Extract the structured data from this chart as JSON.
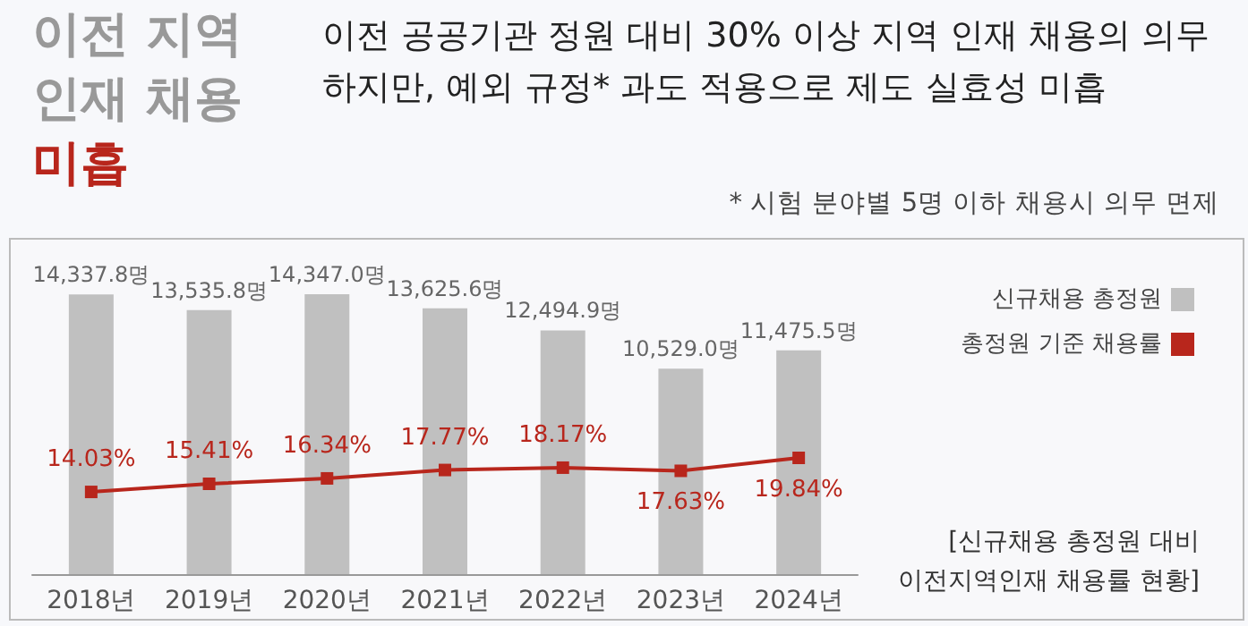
{
  "chart_data": {
    "type": "bar",
    "title": "이전 지역\n인재 채용\n미흡",
    "subtitle": "이전 공공기관 정원 대비 30% 이상 지역 인재 채용의 의무\n하지만, 예외 규정* 과도 적용으로 제도 실효성 미흡",
    "annotations": [
      "* 시험 분야별 5명 이하 채용시 의무 면제",
      "[신규채용 총정원 대비\n이전지역인재 채용률 현황]"
    ],
    "categories": [
      "2018년",
      "2019년",
      "2020년",
      "2021년",
      "2022년",
      "2023년",
      "2024년"
    ],
    "series": [
      {
        "name": "신규채용 총정원",
        "color": "#c0c0c0",
        "values": [
          14337.8,
          13535.8,
          14347.0,
          13625.6,
          12494.9,
          10529.0,
          11475.5
        ],
        "value_labels": [
          "14,337.8명",
          "13,535.8명",
          "14,347.0명",
          "13,625.6명",
          "12,494.9명",
          "10,529.0명",
          "11,475.5명"
        ]
      },
      {
        "name": "총정원 기준 채용률",
        "type": "line",
        "axis": "y2",
        "color": "#b8261c",
        "marker": "square",
        "values": [
          14.03,
          15.41,
          16.34,
          17.77,
          18.17,
          17.63,
          19.84
        ],
        "value_labels": [
          "14.03%",
          "15.41%",
          "16.34%",
          "17.77%",
          "18.17%",
          "17.63%",
          "19.84%"
        ]
      }
    ],
    "tick_labels": "x",
    "grid": false,
    "legend": "top right"
  }
}
